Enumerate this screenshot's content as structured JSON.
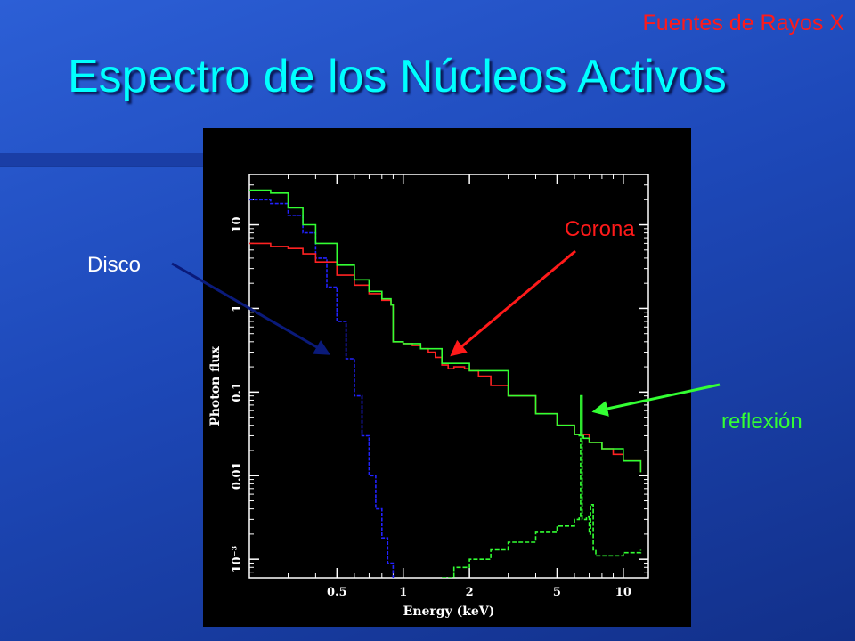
{
  "slide": {
    "section": "Fuentes de Rayos X",
    "title": "Espectro de los Núcleos Activos"
  },
  "annotations": {
    "disk": {
      "text": "Disco",
      "color": "#ffffff"
    },
    "corona": {
      "text": "Corona",
      "color": "#ff1a1a"
    },
    "reflection": {
      "text": "reflexión",
      "color": "#33ff33"
    }
  },
  "chart_data": {
    "type": "line",
    "xscale": "log",
    "yscale": "log",
    "xlim": [
      0.2,
      13
    ],
    "ylim": [
      0.0006,
      40
    ],
    "xlabel": "Energy (keV)",
    "ylabel": "Photon flux",
    "xticks": [
      {
        "v": 0.5,
        "label": "0.5"
      },
      {
        "v": 1,
        "label": "1"
      },
      {
        "v": 2,
        "label": "2"
      },
      {
        "v": 5,
        "label": "5"
      },
      {
        "v": 10,
        "label": "10"
      }
    ],
    "yticks": [
      {
        "v": 10,
        "label": "10"
      },
      {
        "v": 1,
        "label": "1"
      },
      {
        "v": 0.1,
        "label": "0.1"
      },
      {
        "v": 0.01,
        "label": "0.01"
      },
      {
        "v": 0.001,
        "label": "10⁻³"
      }
    ],
    "series": [
      {
        "color": "#2222ff",
        "x": [
          0.2,
          0.25,
          0.3,
          0.35,
          0.4,
          0.45,
          0.5,
          0.55,
          0.6,
          0.65,
          0.7,
          0.75,
          0.8,
          0.85,
          0.9
        ],
        "y": [
          20,
          18,
          13,
          8,
          4,
          1.8,
          0.7,
          0.25,
          0.09,
          0.03,
          0.01,
          0.004,
          0.0018,
          0.0009,
          0.0006
        ]
      },
      {
        "color": "#ff2222",
        "x": [
          0.2,
          0.25,
          0.3,
          0.35,
          0.4,
          0.5,
          0.6,
          0.7,
          0.8,
          0.88,
          0.9,
          1.0,
          1.1,
          1.2,
          1.3,
          1.4,
          1.5,
          1.6,
          1.7,
          1.8,
          1.9,
          2.0,
          2.2,
          2.5,
          3,
          4,
          5,
          6,
          7,
          8,
          9,
          10,
          12
        ],
        "y": [
          6,
          5.5,
          5.2,
          4.5,
          3.6,
          2.5,
          1.9,
          1.5,
          1.25,
          1.1,
          0.4,
          0.38,
          0.36,
          0.33,
          0.3,
          0.26,
          0.21,
          0.19,
          0.2,
          0.2,
          0.19,
          0.18,
          0.155,
          0.12,
          0.09,
          0.055,
          0.04,
          0.031,
          0.025,
          0.021,
          0.018,
          0.015,
          0.011
        ]
      },
      {
        "color": "#33ff33",
        "x": [
          0.2,
          0.25,
          0.3,
          0.35,
          0.4,
          0.5,
          0.6,
          0.7,
          0.8,
          0.88,
          0.9,
          1.0,
          1.2,
          1.5,
          2,
          3,
          4,
          5,
          6,
          6.3,
          6.4,
          6.5,
          6.6,
          7,
          8,
          10,
          12
        ],
        "y": [
          26,
          24,
          16,
          10,
          6,
          3.3,
          2.2,
          1.6,
          1.3,
          1.1,
          0.4,
          0.38,
          0.33,
          0.22,
          0.18,
          0.09,
          0.055,
          0.04,
          0.031,
          0.03,
          0.09,
          0.03,
          0.028,
          0.025,
          0.021,
          0.015,
          0.011
        ]
      },
      {
        "color": "#33ff33",
        "x": [
          1.5,
          1.7,
          2,
          2.5,
          3,
          4,
          5,
          6,
          6.3,
          6.4,
          6.5,
          6.8,
          7.0,
          7.1,
          7.3,
          7.5,
          8,
          10,
          12
        ],
        "y": [
          0.0006,
          0.0008,
          0.001,
          0.0013,
          0.0016,
          0.0021,
          0.0025,
          0.003,
          0.0032,
          0.03,
          0.003,
          0.0032,
          0.002,
          0.0045,
          0.0013,
          0.0011,
          0.0011,
          0.0012,
          0.0013
        ]
      }
    ]
  }
}
